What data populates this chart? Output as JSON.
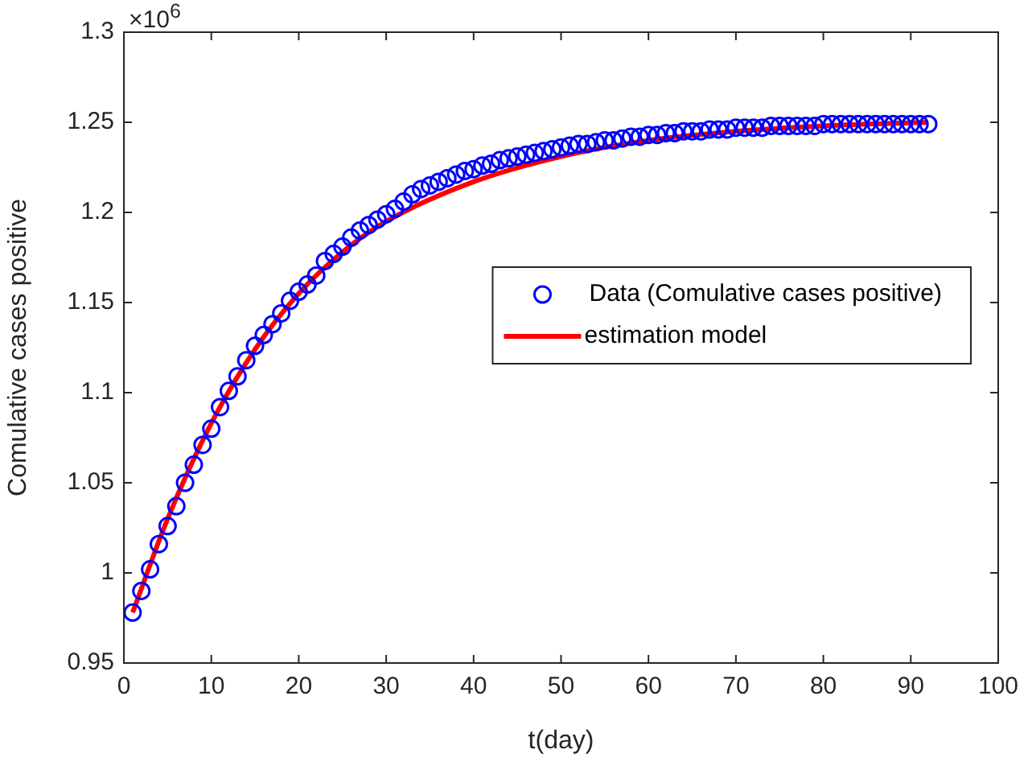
{
  "chart_data": {
    "type": "scatter",
    "xlabel": "t(day)",
    "ylabel": "Comulative cases positive",
    "annotations": [
      "×10$^{6}$"
    ],
    "xlim": [
      0,
      100
    ],
    "xticks": [
      0,
      10,
      20,
      30,
      40,
      50,
      60,
      70,
      80,
      90,
      100
    ],
    "ylim": [
      0.95,
      1.3
    ],
    "yticks": [
      0.95,
      1,
      1.05,
      1.1,
      1.15,
      1.2,
      1.25,
      1.3
    ],
    "grid": false,
    "legend": "right",
    "marker": "circle",
    "series": [
      {
        "name": "Data (Comulative cases positive)",
        "color": "#0000ff",
        "x": [
          1,
          2,
          3,
          4,
          5,
          6,
          7,
          8,
          9,
          10,
          11,
          12,
          13,
          14,
          15,
          16,
          17,
          18,
          19,
          20,
          21,
          22,
          23,
          24,
          25,
          26,
          27,
          28,
          29,
          30,
          31,
          32,
          33,
          34,
          35,
          36,
          37,
          38,
          39,
          40,
          41,
          42,
          43,
          44,
          45,
          46,
          47,
          48,
          49,
          50,
          51,
          52,
          53,
          54,
          55,
          56,
          57,
          58,
          59,
          60,
          61,
          62,
          63,
          64,
          65,
          66,
          67,
          68,
          69,
          70,
          71,
          72,
          73,
          74,
          75,
          76,
          77,
          78,
          79,
          80,
          81,
          82,
          83,
          84,
          85,
          86,
          87,
          88,
          89,
          90,
          91,
          92
        ],
        "values": [
          0.978,
          0.99,
          1.002,
          1.016,
          1.026,
          1.037,
          1.05,
          1.06,
          1.071,
          1.08,
          1.092,
          1.101,
          1.109,
          1.118,
          1.126,
          1.132,
          1.138,
          1.144,
          1.151,
          1.156,
          1.16,
          1.165,
          1.173,
          1.177,
          1.181,
          1.186,
          1.19,
          1.193,
          1.196,
          1.199,
          1.202,
          1.206,
          1.21,
          1.213,
          1.215,
          1.217,
          1.219,
          1.221,
          1.223,
          1.224,
          1.226,
          1.227,
          1.229,
          1.23,
          1.231,
          1.232,
          1.233,
          1.234,
          1.235,
          1.236,
          1.237,
          1.238,
          1.238,
          1.239,
          1.24,
          1.24,
          1.241,
          1.242,
          1.242,
          1.243,
          1.243,
          1.244,
          1.244,
          1.245,
          1.245,
          1.245,
          1.246,
          1.246,
          1.246,
          1.247,
          1.247,
          1.247,
          1.247,
          1.248,
          1.248,
          1.248,
          1.248,
          1.248,
          1.248,
          1.249,
          1.249,
          1.249,
          1.249,
          1.249,
          1.249,
          1.249,
          1.249,
          1.249,
          1.249,
          1.249,
          1.249,
          1.249
        ]
      },
      {
        "name": "estimation model",
        "type": "line",
        "color": "#ff0000",
        "marker": "none",
        "x": [
          1,
          5,
          10,
          15,
          20,
          25,
          30,
          40,
          50,
          60,
          70,
          80,
          92
        ],
        "values": [
          0.978,
          1.03,
          1.083,
          1.124,
          1.155,
          1.178,
          1.195,
          1.217,
          1.231,
          1.24,
          1.245,
          1.248,
          1.25
        ]
      }
    ]
  }
}
